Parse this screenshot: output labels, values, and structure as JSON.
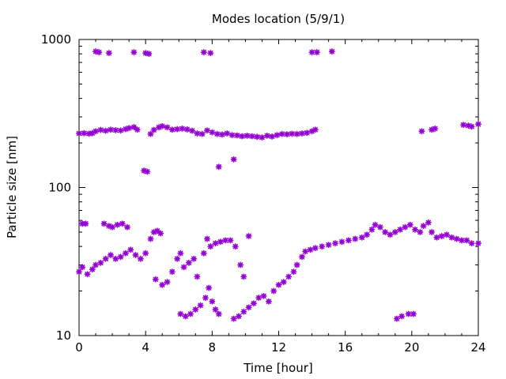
{
  "chart_data": {
    "type": "scatter",
    "title": "Modes location (5/9/1)",
    "xlabel": "Time [hour]",
    "ylabel": "Particle size [nm]",
    "xlim": [
      0,
      24
    ],
    "ylim": [
      10,
      1000
    ],
    "yscale": "log",
    "grid": false,
    "legend": "none",
    "x_ticks": [
      0,
      4,
      8,
      12,
      16,
      20,
      24
    ],
    "x_tick_labels": [
      "0",
      "4",
      "8",
      "12",
      "16",
      "20",
      "24"
    ],
    "y_ticks": [
      10,
      100,
      1000
    ],
    "y_tick_labels": [
      "10",
      "100",
      "1000"
    ],
    "marker": "star",
    "color": "#9400D3",
    "series": [
      {
        "values": [
          [
            1.0,
            830
          ],
          [
            1.2,
            820
          ],
          [
            1.8,
            810
          ],
          [
            3.3,
            820
          ],
          [
            4.0,
            810
          ],
          [
            4.2,
            800
          ],
          [
            7.5,
            820
          ],
          [
            7.9,
            810
          ],
          [
            14.0,
            820
          ],
          [
            14.3,
            820
          ],
          [
            15.2,
            830
          ],
          [
            0.0,
            232
          ],
          [
            0.3,
            233
          ],
          [
            0.6,
            231
          ],
          [
            0.8,
            233
          ],
          [
            1.0,
            240
          ],
          [
            1.3,
            245
          ],
          [
            1.6,
            242
          ],
          [
            1.9,
            246
          ],
          [
            2.2,
            244
          ],
          [
            2.5,
            243
          ],
          [
            2.8,
            248
          ],
          [
            3.0,
            252
          ],
          [
            3.3,
            256
          ],
          [
            3.5,
            246
          ],
          [
            4.3,
            230
          ],
          [
            4.5,
            245
          ],
          [
            4.8,
            255
          ],
          [
            5.0,
            260
          ],
          [
            5.3,
            255
          ],
          [
            5.6,
            246
          ],
          [
            5.9,
            248
          ],
          [
            6.2,
            250
          ],
          [
            6.5,
            247
          ],
          [
            6.8,
            242
          ],
          [
            7.1,
            232
          ],
          [
            7.4,
            230
          ],
          [
            7.7,
            243
          ],
          [
            8.0,
            236
          ],
          [
            8.3,
            230
          ],
          [
            8.6,
            228
          ],
          [
            8.9,
            232
          ],
          [
            9.2,
            226
          ],
          [
            9.5,
            225
          ],
          [
            9.8,
            222
          ],
          [
            10.1,
            224
          ],
          [
            10.4,
            222
          ],
          [
            10.7,
            220
          ],
          [
            11.0,
            218
          ],
          [
            11.3,
            224
          ],
          [
            11.6,
            221
          ],
          [
            11.9,
            226
          ],
          [
            12.2,
            230
          ],
          [
            12.5,
            229
          ],
          [
            12.8,
            231
          ],
          [
            13.1,
            230
          ],
          [
            13.4,
            232
          ],
          [
            13.7,
            234
          ],
          [
            14.0,
            240
          ],
          [
            14.2,
            246
          ],
          [
            3.9,
            130
          ],
          [
            4.1,
            128
          ],
          [
            8.4,
            138
          ],
          [
            9.3,
            155
          ],
          [
            20.6,
            240
          ],
          [
            21.2,
            246
          ],
          [
            21.4,
            250
          ],
          [
            23.1,
            265
          ],
          [
            23.4,
            262
          ],
          [
            23.6,
            258
          ],
          [
            24.0,
            268
          ],
          [
            0.2,
            57
          ],
          [
            0.4,
            57
          ],
          [
            1.5,
            57
          ],
          [
            1.8,
            55
          ],
          [
            2.0,
            54
          ],
          [
            2.3,
            56
          ],
          [
            2.6,
            57
          ],
          [
            2.9,
            54
          ],
          [
            0.0,
            27
          ],
          [
            0.2,
            29
          ],
          [
            0.5,
            26
          ],
          [
            0.8,
            28
          ],
          [
            1.0,
            30
          ],
          [
            1.3,
            31
          ],
          [
            1.6,
            33
          ],
          [
            1.9,
            35
          ],
          [
            2.2,
            33
          ],
          [
            2.5,
            34
          ],
          [
            2.8,
            36
          ],
          [
            3.1,
            38
          ],
          [
            3.4,
            35
          ],
          [
            3.7,
            33
          ],
          [
            4.0,
            36
          ],
          [
            4.3,
            45
          ],
          [
            4.5,
            50
          ],
          [
            4.7,
            51
          ],
          [
            4.9,
            49
          ],
          [
            4.6,
            24
          ],
          [
            5.0,
            22
          ],
          [
            5.3,
            23
          ],
          [
            5.6,
            27
          ],
          [
            5.9,
            33
          ],
          [
            6.1,
            36
          ],
          [
            6.3,
            29
          ],
          [
            6.6,
            31
          ],
          [
            6.9,
            33
          ],
          [
            7.1,
            25
          ],
          [
            7.5,
            36
          ],
          [
            7.7,
            45
          ],
          [
            7.9,
            40
          ],
          [
            8.2,
            42
          ],
          [
            8.5,
            43
          ],
          [
            8.8,
            44
          ],
          [
            9.1,
            44
          ],
          [
            9.4,
            40
          ],
          [
            9.7,
            30
          ],
          [
            9.9,
            25
          ],
          [
            10.2,
            47
          ],
          [
            6.1,
            14
          ],
          [
            6.4,
            13.5
          ],
          [
            6.7,
            14
          ],
          [
            7.0,
            15
          ],
          [
            7.3,
            16
          ],
          [
            7.6,
            18
          ],
          [
            7.8,
            21
          ],
          [
            8.0,
            17
          ],
          [
            8.2,
            15
          ],
          [
            8.4,
            14
          ],
          [
            9.3,
            13
          ],
          [
            9.6,
            13.5
          ],
          [
            9.9,
            14.5
          ],
          [
            10.2,
            15.5
          ],
          [
            10.5,
            16.5
          ],
          [
            10.8,
            18
          ],
          [
            11.1,
            18.5
          ],
          [
            11.4,
            17
          ],
          [
            11.7,
            20
          ],
          [
            12.0,
            22
          ],
          [
            12.3,
            23
          ],
          [
            12.6,
            25
          ],
          [
            12.9,
            27
          ],
          [
            13.1,
            30
          ],
          [
            13.4,
            34
          ],
          [
            13.6,
            37
          ],
          [
            13.9,
            38
          ],
          [
            14.2,
            39
          ],
          [
            14.6,
            40
          ],
          [
            15.0,
            41
          ],
          [
            15.4,
            42
          ],
          [
            15.8,
            43
          ],
          [
            16.2,
            44
          ],
          [
            16.6,
            45
          ],
          [
            17.0,
            46
          ],
          [
            17.3,
            48
          ],
          [
            17.6,
            52
          ],
          [
            17.8,
            56
          ],
          [
            18.1,
            54
          ],
          [
            18.4,
            50
          ],
          [
            18.7,
            48
          ],
          [
            19.0,
            50
          ],
          [
            19.3,
            52
          ],
          [
            19.6,
            54
          ],
          [
            19.9,
            56
          ],
          [
            20.2,
            52
          ],
          [
            20.5,
            50
          ],
          [
            20.7,
            55
          ],
          [
            21.0,
            58
          ],
          [
            21.2,
            50
          ],
          [
            21.5,
            46
          ],
          [
            21.8,
            47
          ],
          [
            22.1,
            48
          ],
          [
            22.4,
            46
          ],
          [
            22.7,
            45
          ],
          [
            23.0,
            44
          ],
          [
            23.3,
            44
          ],
          [
            23.6,
            42
          ],
          [
            24.0,
            42
          ],
          [
            19.1,
            13
          ],
          [
            19.4,
            13.5
          ],
          [
            19.8,
            14
          ],
          [
            20.1,
            14
          ]
        ]
      }
    ]
  }
}
